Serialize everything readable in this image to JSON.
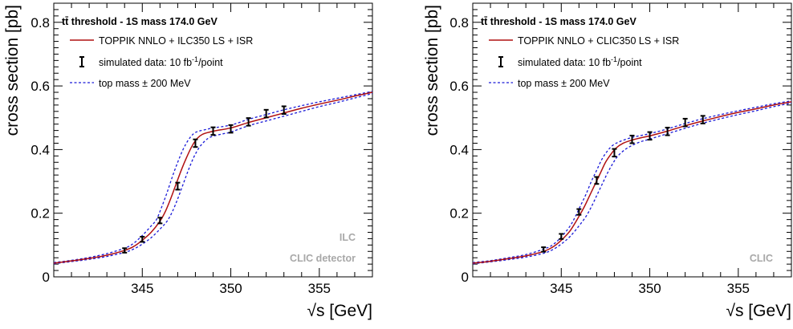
{
  "chart_data": [
    {
      "type": "line",
      "title": "tt̄ threshold - 1S mass 174.0 GeV",
      "xlabel": "√s [GeV]",
      "ylabel": "cross section [pb]",
      "xlim": [
        340,
        358
      ],
      "ylim": [
        0,
        0.86
      ],
      "x_ticks": [
        "345",
        "350",
        "355"
      ],
      "y_ticks": [
        "0",
        "0.2",
        "0.4",
        "0.6",
        "0.8"
      ],
      "grid": false,
      "legend_position": "top-left",
      "legend": {
        "line": "TOPPIK NNLO + ILC350 LS + ISR",
        "data_prefix": "simulated data: 10 fb",
        "data_exp": "-1",
        "data_suffix": "/point",
        "band": "top mass ± 200 MeV"
      },
      "labels": [
        "ILC",
        "CLIC detector"
      ],
      "colors": {
        "nominal": "#b01010",
        "variation": "#1a1ad8",
        "data": "#000000",
        "label": "#a8a8a8"
      },
      "series": [
        {
          "name": "TOPPIK NNLO + ILC350 LS + ISR",
          "style": "solid",
          "x": [
            340,
            341,
            342,
            343,
            344,
            344.5,
            345,
            345.5,
            346,
            346.3,
            346.6,
            346.9,
            347.2,
            347.5,
            347.8,
            348.1,
            348.4,
            348.8,
            349.2,
            350,
            351,
            352,
            353,
            354,
            355,
            356,
            357,
            358
          ],
          "y": [
            0.043,
            0.05,
            0.058,
            0.068,
            0.083,
            0.095,
            0.115,
            0.14,
            0.175,
            0.205,
            0.245,
            0.29,
            0.335,
            0.375,
            0.41,
            0.435,
            0.448,
            0.455,
            0.46,
            0.468,
            0.485,
            0.5,
            0.515,
            0.53,
            0.543,
            0.555,
            0.568,
            0.58
          ]
        },
        {
          "name": "top mass − 200 MeV",
          "style": "dashed",
          "x": [
            340,
            341,
            342,
            343,
            344,
            344.5,
            345,
            345.5,
            345.8,
            346.1,
            346.4,
            346.7,
            347,
            347.3,
            347.6,
            347.9,
            348.2,
            348.6,
            349,
            350,
            351,
            352,
            353,
            354,
            355,
            356,
            357,
            358
          ],
          "y": [
            0.045,
            0.052,
            0.061,
            0.073,
            0.09,
            0.105,
            0.13,
            0.16,
            0.18,
            0.22,
            0.265,
            0.315,
            0.36,
            0.4,
            0.43,
            0.45,
            0.458,
            0.463,
            0.468,
            0.477,
            0.495,
            0.51,
            0.525,
            0.538,
            0.55,
            0.561,
            0.572,
            0.583
          ]
        },
        {
          "name": "top mass + 200 MeV",
          "style": "dashed",
          "x": [
            340,
            341,
            342,
            343,
            344,
            344.5,
            345,
            345.5,
            346,
            346.4,
            346.7,
            347,
            347.3,
            347.6,
            347.9,
            348.2,
            348.5,
            348.8,
            349.2,
            349.6,
            350,
            351,
            352,
            353,
            354,
            355,
            356,
            357,
            358
          ],
          "y": [
            0.041,
            0.048,
            0.055,
            0.064,
            0.077,
            0.087,
            0.103,
            0.123,
            0.15,
            0.175,
            0.205,
            0.245,
            0.29,
            0.335,
            0.375,
            0.405,
            0.425,
            0.438,
            0.445,
            0.45,
            0.455,
            0.475,
            0.49,
            0.505,
            0.52,
            0.535,
            0.548,
            0.562,
            0.576
          ]
        },
        {
          "name": "simulated data",
          "style": "errorbar",
          "x": [
            344,
            345,
            346,
            347,
            348,
            349,
            350,
            351,
            352,
            353
          ],
          "y": [
            0.083,
            0.118,
            0.177,
            0.285,
            0.42,
            0.458,
            0.465,
            0.487,
            0.513,
            0.524
          ],
          "err": [
            0.007,
            0.008,
            0.009,
            0.011,
            0.012,
            0.012,
            0.012,
            0.012,
            0.012,
            0.012
          ]
        }
      ]
    },
    {
      "type": "line",
      "title": "tt̄ threshold - 1S mass 174.0 GeV",
      "xlabel": "√s [GeV]",
      "ylabel": "cross section [pb]",
      "xlim": [
        340,
        358
      ],
      "ylim": [
        0,
        0.86
      ],
      "x_ticks": [
        "345",
        "350",
        "355"
      ],
      "y_ticks": [
        "0",
        "0.2",
        "0.4",
        "0.6",
        "0.8"
      ],
      "grid": false,
      "legend_position": "top-left",
      "legend": {
        "line": "TOPPIK NNLO + CLIC350 LS + ISR",
        "data_prefix": "simulated data: 10 fb",
        "data_exp": "-1",
        "data_suffix": "/point",
        "band": "top mass ± 200 MeV"
      },
      "labels": [
        "CLIC"
      ],
      "colors": {
        "nominal": "#b01010",
        "variation": "#1a1ad8",
        "data": "#000000",
        "label": "#a8a8a8"
      },
      "series": [
        {
          "name": "TOPPIK NNLO + CLIC350 LS + ISR",
          "style": "solid",
          "x": [
            340,
            341,
            342,
            343,
            344,
            344.5,
            345,
            345.5,
            346,
            346.3,
            346.6,
            346.9,
            347.2,
            347.5,
            347.8,
            348.1,
            348.5,
            349,
            349.5,
            350,
            351,
            352,
            353,
            354,
            355,
            356,
            357,
            358
          ],
          "y": [
            0.043,
            0.049,
            0.057,
            0.066,
            0.08,
            0.093,
            0.115,
            0.145,
            0.19,
            0.22,
            0.255,
            0.29,
            0.325,
            0.36,
            0.385,
            0.405,
            0.42,
            0.43,
            0.437,
            0.443,
            0.458,
            0.475,
            0.49,
            0.504,
            0.517,
            0.528,
            0.54,
            0.55
          ]
        },
        {
          "name": "top mass − 200 MeV",
          "style": "dashed",
          "x": [
            340,
            341,
            342,
            343,
            344,
            344.5,
            345,
            345.5,
            345.8,
            346.1,
            346.4,
            346.7,
            347,
            347.3,
            347.6,
            347.9,
            348.3,
            348.8,
            349.3,
            350,
            351,
            352,
            353,
            354,
            355,
            356,
            357,
            358
          ],
          "y": [
            0.045,
            0.051,
            0.06,
            0.07,
            0.087,
            0.1,
            0.125,
            0.16,
            0.19,
            0.225,
            0.26,
            0.3,
            0.335,
            0.37,
            0.395,
            0.413,
            0.425,
            0.435,
            0.442,
            0.45,
            0.465,
            0.482,
            0.497,
            0.51,
            0.522,
            0.533,
            0.544,
            0.553
          ]
        },
        {
          "name": "top mass + 200 MeV",
          "style": "dashed",
          "x": [
            340,
            341,
            342,
            343,
            344,
            344.5,
            345,
            345.5,
            346,
            346.4,
            346.7,
            347,
            347.3,
            347.6,
            347.9,
            348.2,
            348.6,
            349,
            349.5,
            350,
            351,
            352,
            353,
            354,
            355,
            356,
            357,
            358
          ],
          "y": [
            0.041,
            0.047,
            0.054,
            0.062,
            0.074,
            0.085,
            0.103,
            0.127,
            0.16,
            0.19,
            0.22,
            0.255,
            0.29,
            0.325,
            0.355,
            0.38,
            0.4,
            0.413,
            0.425,
            0.433,
            0.45,
            0.467,
            0.483,
            0.497,
            0.51,
            0.522,
            0.535,
            0.546
          ]
        },
        {
          "name": "simulated data",
          "style": "errorbar",
          "x": [
            344,
            345,
            346,
            347,
            348,
            349,
            350,
            351,
            352,
            353
          ],
          "y": [
            0.086,
            0.127,
            0.204,
            0.303,
            0.39,
            0.432,
            0.443,
            0.457,
            0.485,
            0.494
          ],
          "err": [
            0.007,
            0.008,
            0.009,
            0.011,
            0.012,
            0.012,
            0.012,
            0.012,
            0.012,
            0.012
          ]
        }
      ]
    }
  ]
}
